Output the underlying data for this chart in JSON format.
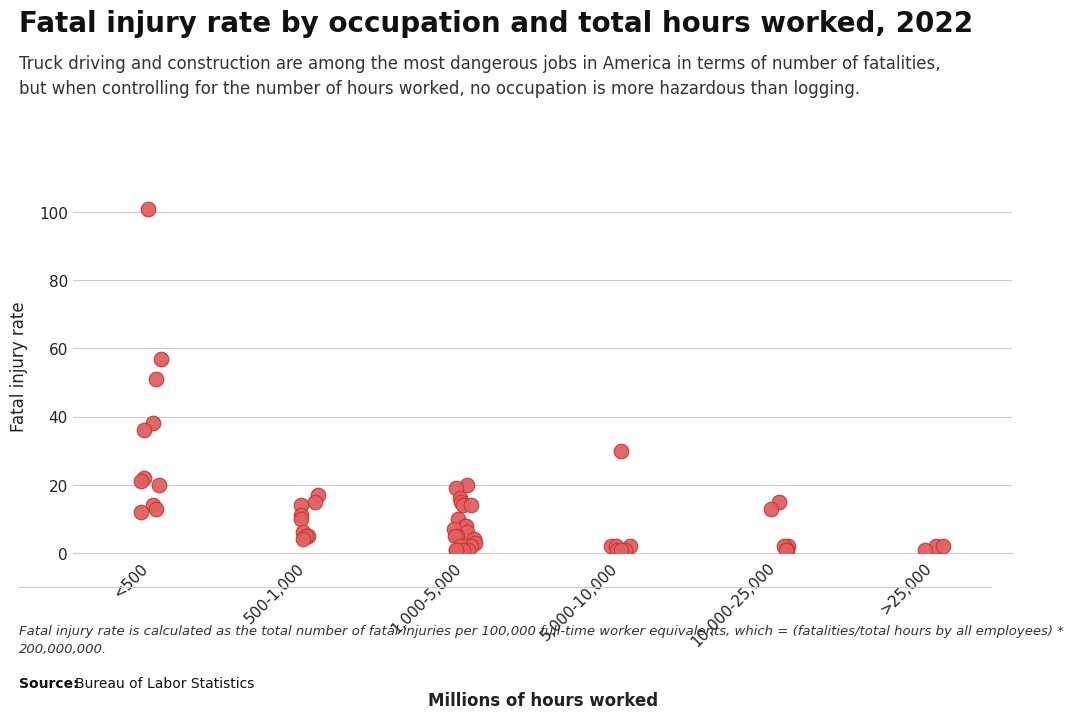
{
  "title": "Fatal injury rate by occupation and total hours worked, 2022",
  "subtitle": "Truck driving and construction are among the most dangerous jobs in America in terms of number of fatalities,\nbut when controlling for the number of hours worked, no occupation is more hazardous than logging.",
  "xlabel": "Millions of hours worked",
  "ylabel": "Fatal injury rate",
  "footnote": "Fatal injury rate is calculated as the total number of fatal injuries per 100,000 full-time worker equivalents, which = (fatalities/total hours by all employees) *\n200,000,000.",
  "source": "Bureau of Labor Statistics",
  "categories": [
    "<500",
    "500-1,000",
    "1,000-5,000",
    "5,000-10,000",
    "10,000-25,000",
    ">25,000"
  ],
  "data_points": [
    {
      "cat": 1,
      "y": 101
    },
    {
      "cat": 1,
      "y": 57
    },
    {
      "cat": 1,
      "y": 51
    },
    {
      "cat": 1,
      "y": 38
    },
    {
      "cat": 1,
      "y": 36
    },
    {
      "cat": 1,
      "y": 22
    },
    {
      "cat": 1,
      "y": 21
    },
    {
      "cat": 1,
      "y": 20
    },
    {
      "cat": 1,
      "y": 14
    },
    {
      "cat": 1,
      "y": 13
    },
    {
      "cat": 1,
      "y": 12
    },
    {
      "cat": 2,
      "y": 17
    },
    {
      "cat": 2,
      "y": 15
    },
    {
      "cat": 2,
      "y": 14
    },
    {
      "cat": 2,
      "y": 11
    },
    {
      "cat": 2,
      "y": 10
    },
    {
      "cat": 2,
      "y": 6
    },
    {
      "cat": 2,
      "y": 5
    },
    {
      "cat": 2,
      "y": 5
    },
    {
      "cat": 2,
      "y": 4
    },
    {
      "cat": 3,
      "y": 20
    },
    {
      "cat": 3,
      "y": 19
    },
    {
      "cat": 3,
      "y": 16
    },
    {
      "cat": 3,
      "y": 15
    },
    {
      "cat": 3,
      "y": 14
    },
    {
      "cat": 3,
      "y": 14
    },
    {
      "cat": 3,
      "y": 10
    },
    {
      "cat": 3,
      "y": 8
    },
    {
      "cat": 3,
      "y": 8
    },
    {
      "cat": 3,
      "y": 7
    },
    {
      "cat": 3,
      "y": 6
    },
    {
      "cat": 3,
      "y": 5
    },
    {
      "cat": 3,
      "y": 5
    },
    {
      "cat": 3,
      "y": 4
    },
    {
      "cat": 3,
      "y": 3
    },
    {
      "cat": 3,
      "y": 2
    },
    {
      "cat": 3,
      "y": 2
    },
    {
      "cat": 3,
      "y": 1
    },
    {
      "cat": 3,
      "y": 1
    },
    {
      "cat": 3,
      "y": 1
    },
    {
      "cat": 3,
      "y": 1
    },
    {
      "cat": 4,
      "y": 30
    },
    {
      "cat": 4,
      "y": 2
    },
    {
      "cat": 4,
      "y": 2
    },
    {
      "cat": 4,
      "y": 2
    },
    {
      "cat": 4,
      "y": 1
    },
    {
      "cat": 4,
      "y": 1
    },
    {
      "cat": 4,
      "y": 1
    },
    {
      "cat": 5,
      "y": 15
    },
    {
      "cat": 5,
      "y": 13
    },
    {
      "cat": 5,
      "y": 2
    },
    {
      "cat": 5,
      "y": 2
    },
    {
      "cat": 5,
      "y": 1
    },
    {
      "cat": 5,
      "y": 1
    },
    {
      "cat": 6,
      "y": 2
    },
    {
      "cat": 6,
      "y": 2
    },
    {
      "cat": 6,
      "y": 1
    }
  ],
  "dot_color": "#e06060",
  "dot_edge_color": "#cc3333",
  "dot_size": 110,
  "ylim": [
    0,
    110
  ],
  "yticks": [
    0,
    20,
    40,
    60,
    80,
    100
  ],
  "background_color": "#ffffff",
  "grid_color": "#cccccc",
  "title_fontsize": 20,
  "subtitle_fontsize": 12,
  "axis_label_fontsize": 12,
  "tick_fontsize": 11
}
